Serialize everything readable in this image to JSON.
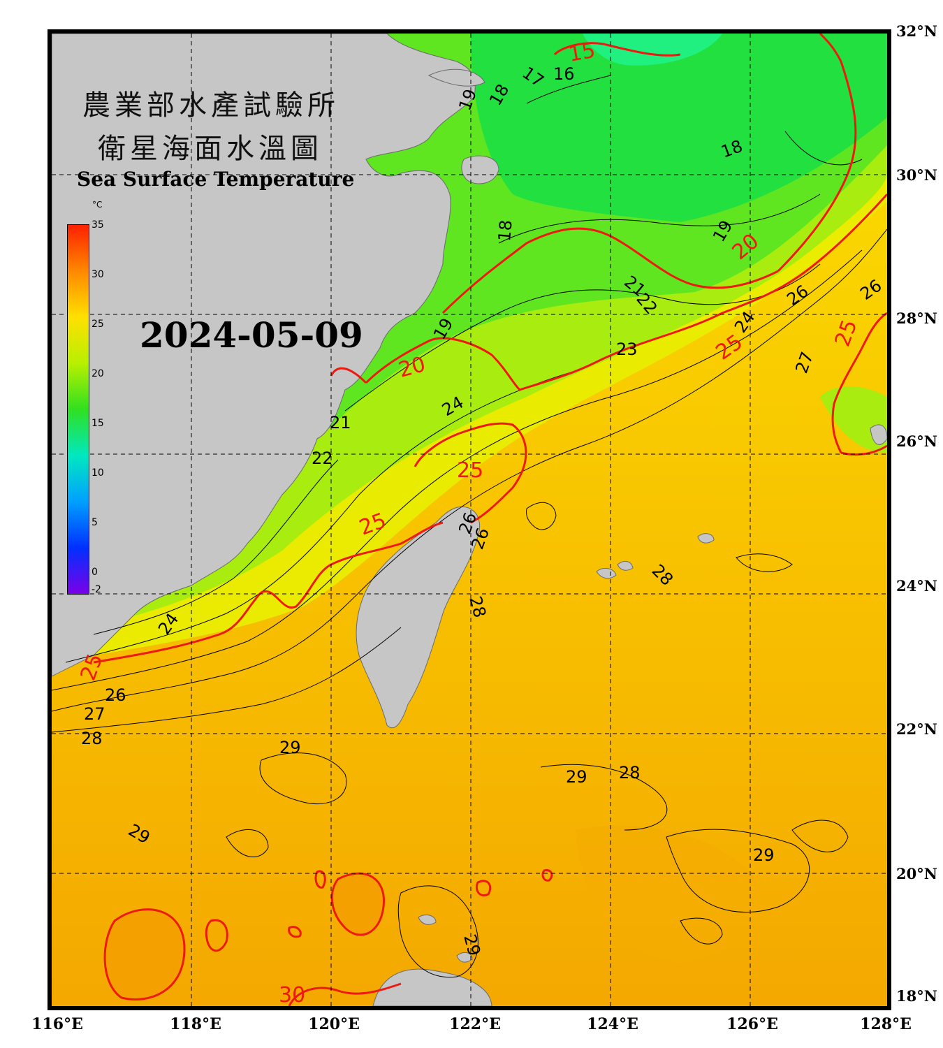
{
  "title": {
    "line1": "農業部水產試驗所",
    "line2": "衛星海面水溫圖",
    "english": "Sea Surface Temperature"
  },
  "date": "2024-05-09",
  "colorbar": {
    "unit": "°C",
    "ticks": [
      "35",
      "30",
      "25",
      "20",
      "15",
      "10",
      "5",
      "0",
      "-2"
    ],
    "colors": [
      "#ff2000",
      "#ff8800",
      "#ffe000",
      "#b8f000",
      "#30e020",
      "#00e8c0",
      "#00a0ff",
      "#0030ff",
      "#7a00e8"
    ]
  },
  "axes": {
    "latitude_labels": [
      "32°N",
      "30°N",
      "28°N",
      "26°N",
      "24°N",
      "22°N",
      "20°N",
      "18°N"
    ],
    "longitude_labels": [
      "116°E",
      "118°E",
      "120°E",
      "122°E",
      "124°E",
      "126°E",
      "128°E"
    ]
  },
  "contour_labels": {
    "black": [
      "17",
      "16",
      "19",
      "18",
      "18",
      "18",
      "19",
      "21",
      "22",
      "23",
      "24",
      "26",
      "26",
      "19",
      "24",
      "21",
      "22",
      "26",
      "26",
      "27",
      "28",
      "28",
      "24",
      "26",
      "27",
      "28",
      "29",
      "29",
      "28",
      "29",
      "29",
      "29"
    ],
    "red": [
      "15",
      "20",
      "20",
      "25",
      "25",
      "25",
      "25",
      "25",
      "30"
    ]
  },
  "colors": {
    "land": "#c6c6c6",
    "contour_red": "#ee1a10",
    "contour_black": "#000000",
    "warm_sea": "#f6c400",
    "cool_sea": "#34e020"
  }
}
